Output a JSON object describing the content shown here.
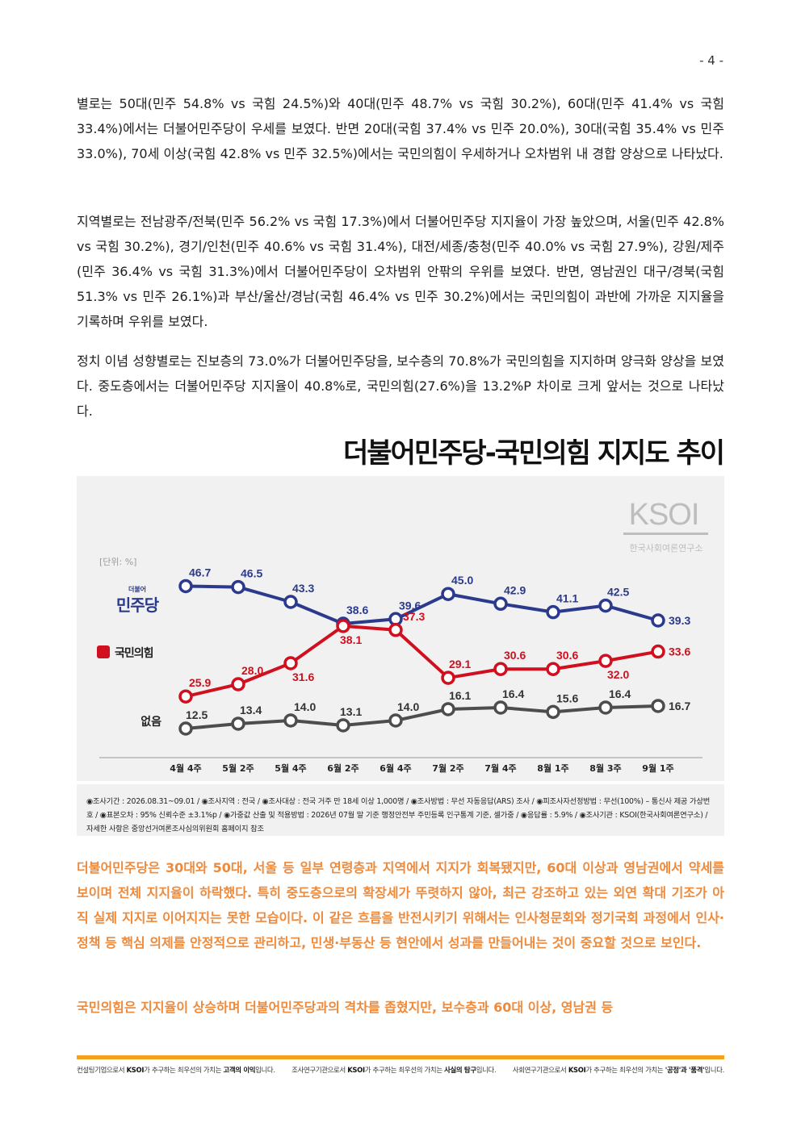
{
  "page_number": "- 4 -",
  "paragraphs": [
    "별로는 50대(민주 54.8% vs 국힘 24.5%)와 40대(민주 48.7% vs 국힘 30.2%), 60대(민주 41.4% vs 국힘 33.4%)에서는 더불어민주당이 우세를 보였다. 반면 20대(국힘 37.4% vs 민주 20.0%), 30대(국힘 35.4% vs 민주 33.0%), 70세 이상(국힘 42.8% vs 민주 32.5%)에서는 국민의힘이 우세하거나 오차범위 내 경합 양상으로 나타났다.",
    "지역별로는 전남광주/전북(민주 56.2% vs 국힘 17.3%)에서 더불어민주당 지지율이 가장 높았으며, 서울(민주 42.8% vs 국힘 30.2%), 경기/인천(민주 40.6% vs 국힘 31.4%), 대전/세종/충청(민주 40.0% vs 국힘 27.9%), 강원/제주(민주 36.4% vs 국힘 31.3%)에서 더불어민주당이 오차범위 안팎의 우위를 보였다. 반면, 영남권인 대구/경북(국힘 51.3% vs 민주 26.1%)과 부산/울산/경남(국힘 46.4% vs 민주 30.2%)에서는 국민의힘이 과반에 가까운 지지율을 기록하며 우위를 보였다.",
    "정치 이념 성향별로는 진보층의 73.0%가 더불어민주당을, 보수층의 70.8%가 국민의힘을 지지하며 양극화 양상을 보였다. 중도층에서는 더불어민주당 지지율이 40.8%로, 국민의힘(27.6%)을 13.2%P 차이로 크게 앞서는 것으로 나타났다."
  ],
  "chart_title": "더불어민주당-국민의힘 지지도 추이",
  "chart_data": {
    "type": "line",
    "unit_label": "[단위: %]",
    "logo_text": "KSOI",
    "logo_subtitle": "한국사회여론연구소",
    "categories": [
      "4월 4주",
      "5월 2주",
      "5월 4주",
      "6월 2주",
      "6월 4주",
      "7월 2주",
      "7월 4주",
      "8월 1주",
      "8월 3주",
      "9월 1주"
    ],
    "series": [
      {
        "name": "민주당",
        "name_small": "더불어",
        "color": "#2b3a8c",
        "values": [
          46.7,
          46.5,
          43.3,
          38.6,
          39.6,
          45.0,
          42.9,
          41.1,
          42.5,
          39.3
        ]
      },
      {
        "name": "국민의힘",
        "color": "#d0101e",
        "values": [
          25.9,
          28.0,
          31.6,
          38.1,
          37.3,
          29.1,
          30.6,
          30.6,
          32.0,
          33.6
        ]
      },
      {
        "name": "없음",
        "color": "#4d4d4d",
        "values": [
          12.5,
          13.4,
          14.0,
          13.1,
          14.0,
          16.1,
          16.4,
          15.6,
          16.4,
          16.7
        ]
      }
    ],
    "legend": "left",
    "grid": false
  },
  "survey_note": "◉조사기간 : 2026.08.31~09.01 / ◉조사지역 : 전국 / ◉조사대상 : 전국 거주 만 18세 이상 1,000명 / ◉조사방법 : 무선 자동응답(ARS) 조사 / ◉피조사자선정방법 : 무선(100%) – 통신사 제공 가상번호 / ◉표본오차 : 95% 신뢰수준 ±3.1%p / ◉가중값 산출 및 적용방법 : 2026년 07월 말 기준 행정안전부 주민등록 인구통계 기준, 셀가중 / ◉응답률 : 5.9% / ◉조사기관 : KSOI(한국사회여론연구소) / 자세한 사항은 중앙선거여론조사심의위원회 홈페이지 참조",
  "orange_paragraphs": [
    "더불어민주당은 30대와 50대, 서울 등 일부 연령층과 지역에서 지지가 회복됐지만, 60대 이상과 영남권에서 약세를 보이며 전체 지지율이 하락했다. 특히 중도층으로의 확장세가 뚜렷하지 않아, 최근 강조하고 있는 외연 확대 기조가 아직 실제 지지로 이어지지는 못한 모습이다. 이 같은 흐름을 반전시키기 위해서는 인사청문회와 정기국회 과정에서 인사·정책 등 핵심 의제를 안정적으로 관리하고, 민생·부동산 등 현안에서 성과를 만들어내는 것이 중요할 것으로 보인다.",
    "국민의힘은 지지율이 상승하며 더불어민주당과의 격차를 좁혔지만, 보수층과 60대 이상, 영남권 등"
  ],
  "footer": [
    {
      "pre": "컨설팅기업으로서 ",
      "brand": "KSOI",
      "mid": "가 추구하는 최우선의 가치는 ",
      "key": "고객의 이익",
      "post": "입니다."
    },
    {
      "pre": "조사연구기관으로서 ",
      "brand": "KSOI",
      "mid": "가 추구하는 최우선의 가치는 ",
      "key": "사실의 탐구",
      "post": "입니다."
    },
    {
      "pre": "사회연구기관으로서 ",
      "brand": "KSOI",
      "mid": "가 추구하는 최우선의 가치는 ",
      "key": "'공정'과 '품격'",
      "post": "입니다."
    }
  ],
  "colors": {
    "accent_orange": "#ee8a3c",
    "footer_bar": "#f2a21d",
    "minju": "#2b3a8c",
    "ppp": "#d0101e",
    "none": "#4d4d4d"
  }
}
